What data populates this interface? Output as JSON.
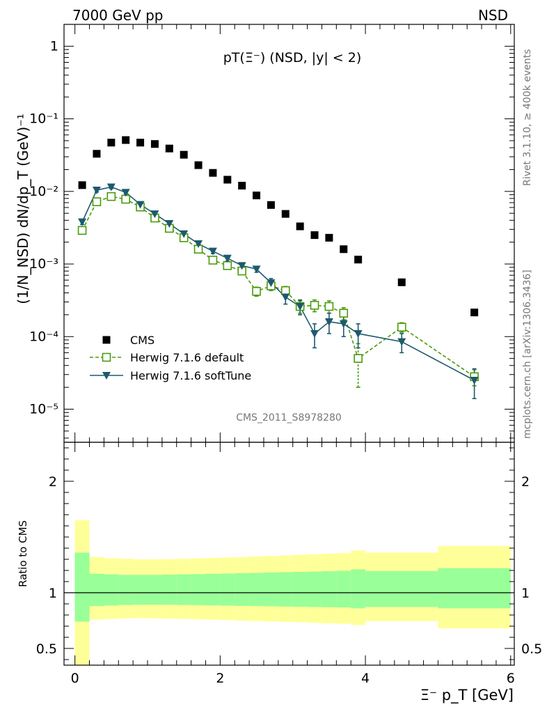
{
  "header": {
    "left": "7000 GeV pp",
    "right": "NSD"
  },
  "side_text": {
    "rivet": "Rivet 3.1.10, ≥ 400k events",
    "mcplots": "mcplots.cern.ch [arXiv:1306.3436]"
  },
  "chart_data": [
    {
      "type": "scatter",
      "title": "pT(Ξ⁻) (NSD, |y| < 2)",
      "watermark": "CMS_2011_S8978280",
      "yscale": "log",
      "xlim": [
        -0.15,
        6.05
      ],
      "ylim": [
        3.5e-06,
        2.0
      ],
      "ylabel": "(1/N_NSD) dN/dp_T (GeV)⁻¹",
      "xlabel": "",
      "y_tick_labels": [
        "1",
        "10⁻¹",
        "10⁻²",
        "10⁻³",
        "10⁻⁴",
        "10⁻⁵"
      ],
      "legend": {
        "position": "bottom-left",
        "entries": [
          "CMS",
          "Herwig 7.1.6 default",
          "Herwig 7.1.6 softTune"
        ]
      },
      "series": [
        {
          "name": "CMS",
          "color": "#000000",
          "marker": "square",
          "x": [
            0.1,
            0.3,
            0.5,
            0.7,
            0.9,
            1.1,
            1.3,
            1.5,
            1.7,
            1.9,
            2.1,
            2.3,
            2.5,
            2.7,
            2.9,
            3.1,
            3.3,
            3.5,
            3.7,
            3.9,
            4.5,
            5.5
          ],
          "y": [
            0.0122,
            0.033,
            0.047,
            0.051,
            0.047,
            0.045,
            0.039,
            0.032,
            0.023,
            0.018,
            0.0145,
            0.012,
            0.0088,
            0.0065,
            0.0049,
            0.0033,
            0.0025,
            0.0023,
            0.0016,
            0.00115,
            0.00056,
            0.000215
          ]
        },
        {
          "name": "Herwig 7.1.6 default",
          "color": "#4a9a0a",
          "marker": "open-square",
          "line": "dashed",
          "x": [
            0.1,
            0.3,
            0.5,
            0.7,
            0.9,
            1.1,
            1.3,
            1.5,
            1.7,
            1.9,
            2.1,
            2.3,
            2.5,
            2.7,
            2.9,
            3.1,
            3.3,
            3.5,
            3.7,
            3.9,
            4.5,
            5.5
          ],
          "y": [
            0.0029,
            0.0072,
            0.0085,
            0.0078,
            0.0061,
            0.0043,
            0.0031,
            0.0023,
            0.0016,
            0.00113,
            0.00095,
            0.0008,
            0.00042,
            0.0005,
            0.00043,
            0.00026,
            0.00027,
            0.00026,
            0.00021,
            5e-05,
            0.000135,
            2.8e-05
          ],
          "yerr": [
            0.0003,
            0.0005,
            0.0005,
            0.0005,
            0.0004,
            0.0003,
            0.0002,
            0.00015,
            0.00012,
            0.0001,
            9e-05,
            8e-05,
            6e-05,
            7e-05,
            6e-05,
            5e-05,
            5e-05,
            5e-05,
            4e-05,
            3e-05,
            2e-05,
            7e-06
          ]
        },
        {
          "name": "Herwig 7.1.6 softTune",
          "color": "#1d5a6e",
          "marker": "triangle-down",
          "line": "solid",
          "x": [
            0.1,
            0.3,
            0.5,
            0.7,
            0.9,
            1.1,
            1.3,
            1.5,
            1.7,
            1.9,
            2.1,
            2.3,
            2.5,
            2.7,
            2.9,
            3.1,
            3.3,
            3.5,
            3.7,
            3.9,
            4.5,
            5.5
          ],
          "y": [
            0.0038,
            0.0104,
            0.0115,
            0.0097,
            0.0066,
            0.0049,
            0.0036,
            0.0026,
            0.0019,
            0.0015,
            0.0012,
            0.00095,
            0.00085,
            0.00055,
            0.00035,
            0.00026,
            0.00011,
            0.00016,
            0.00015,
            0.00011,
            8.5e-05,
            2.5e-05
          ],
          "yerr": [
            0.0003,
            0.0006,
            0.0006,
            0.0005,
            0.0004,
            0.0003,
            0.0002,
            0.00017,
            0.00013,
            0.00011,
            0.0001,
            9e-05,
            8e-05,
            8e-05,
            7e-05,
            6e-05,
            4e-05,
            5e-05,
            5e-05,
            4e-05,
            2.5e-05,
            1.1e-05
          ]
        }
      ]
    },
    {
      "type": "area",
      "title": "",
      "ylabel": "Ratio to CMS",
      "xlabel": "Ξ⁻ p_T [GeV]",
      "xlim": [
        -0.15,
        6.05
      ],
      "ylim": [
        0.35,
        2.35
      ],
      "x_ticks": [
        0,
        2,
        4,
        6
      ],
      "y_ticks": [
        0.5,
        1,
        2
      ],
      "bands": {
        "edges": [
          0.0,
          0.2,
          0.4,
          0.6,
          0.8,
          1.0,
          1.2,
          1.4,
          1.6,
          1.8,
          2.0,
          2.2,
          2.4,
          2.6,
          2.8,
          3.0,
          3.2,
          3.4,
          3.6,
          3.8,
          4.0,
          5.0,
          6.0
        ],
        "outer_color": "#ffff99",
        "inner_color": "#99ff99",
        "outer_low": [
          0.1,
          0.76,
          0.765,
          0.77,
          0.772,
          0.77,
          0.768,
          0.765,
          0.762,
          0.758,
          0.754,
          0.75,
          0.746,
          0.742,
          0.738,
          0.735,
          0.73,
          0.726,
          0.722,
          0.71,
          0.745,
          0.68
        ],
        "outer_high": [
          1.65,
          1.32,
          1.31,
          1.305,
          1.3,
          1.3,
          1.302,
          1.305,
          1.308,
          1.312,
          1.316,
          1.32,
          1.325,
          1.33,
          1.335,
          1.34,
          1.345,
          1.35,
          1.355,
          1.38,
          1.36,
          1.42
        ],
        "inner_low": [
          0.74,
          0.88,
          0.885,
          0.89,
          0.892,
          0.893,
          0.892,
          0.89,
          0.888,
          0.886,
          0.884,
          0.882,
          0.88,
          0.878,
          0.876,
          0.874,
          0.872,
          0.87,
          0.868,
          0.86,
          0.872,
          0.86
        ],
        "inner_high": [
          1.36,
          1.17,
          1.165,
          1.16,
          1.16,
          1.16,
          1.162,
          1.165,
          1.167,
          1.17,
          1.172,
          1.175,
          1.178,
          1.181,
          1.184,
          1.187,
          1.19,
          1.193,
          1.196,
          1.21,
          1.195,
          1.22
        ]
      }
    }
  ]
}
